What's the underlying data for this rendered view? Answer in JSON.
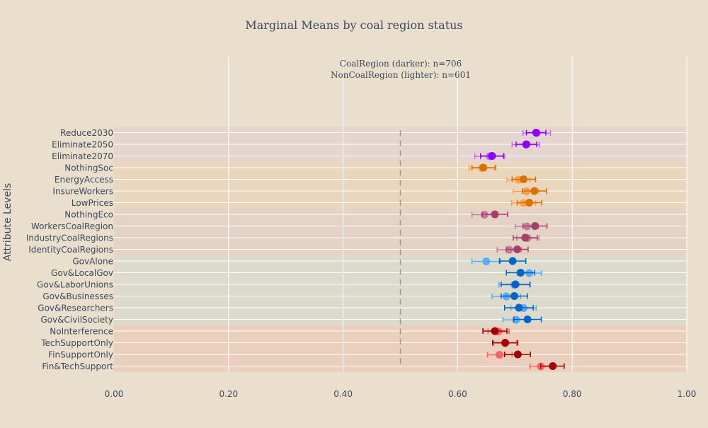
{
  "chart_data": {
    "type": "scatter",
    "title": "Marginal Means by coal region status",
    "annotation_lines": [
      "CoalRegion (darker): n=706",
      "NonCoalRegion (lighter): n=601"
    ],
    "ylabel": "Attribute Levels",
    "xlabel": "",
    "xlim": [
      0,
      1
    ],
    "x_ticks": [
      0,
      0.2,
      0.4,
      0.6,
      0.8,
      1.0
    ],
    "x_tick_labels": [
      "0.00",
      "0.20",
      "0.40",
      "0.60",
      "0.80",
      "1.00"
    ],
    "reference_line_x": 0.5,
    "grid": true,
    "series": [
      {
        "name": "CoalRegion (darker)",
        "shade": "darker"
      },
      {
        "name": "NonCoalRegion (lighter)",
        "shade": "lighter"
      }
    ],
    "groups": [
      {
        "band_color": "#e6d5cf",
        "dark_color": "#8b00ff",
        "light_color": "#b86bff",
        "levels": [
          "Reduce2030",
          "Eliminate2050",
          "Eliminate2070"
        ]
      },
      {
        "band_color": "#ead5bd",
        "dark_color": "#d97100",
        "light_color": "#ffa04d",
        "levels": [
          "NothingSoc",
          "EnergyAccess",
          "InsureWorkers",
          "LowPrices"
        ]
      },
      {
        "band_color": "#e4d3c4",
        "dark_color": "#a4406b",
        "light_color": "#c47b9a",
        "levels": [
          "NothingEco",
          "WorkersCoalRegion",
          "IndustryCoalRegions",
          "IdentityCoalRegions"
        ]
      },
      {
        "band_color": "#dcd9cd",
        "dark_color": "#0065c7",
        "light_color": "#5aaaf5",
        "levels": [
          "GovAlone",
          "Gov&LocalGov",
          "Gov&LaborUnions",
          "Gov&Businesses",
          "Gov&Researchers",
          "Gov&CivilSociety"
        ]
      },
      {
        "band_color": "#ebcfbd",
        "dark_color": "#a30000",
        "light_color": "#ff6363",
        "levels": [
          "NoInterference",
          "TechSupportOnly",
          "FinSupportOnly",
          "Fin&TechSupport"
        ]
      }
    ],
    "points": [
      {
        "level": "Reduce2030",
        "dark": [
          0.737,
          0.72,
          0.754
        ],
        "light": [
          0.738,
          0.714,
          0.762
        ]
      },
      {
        "level": "Eliminate2050",
        "dark": [
          0.72,
          0.702,
          0.738
        ],
        "light": [
          0.719,
          0.695,
          0.743
        ]
      },
      {
        "level": "Eliminate2070",
        "dark": [
          0.66,
          0.64,
          0.68
        ],
        "light": [
          0.656,
          0.63,
          0.682
        ]
      },
      {
        "level": "NothingSoc",
        "dark": [
          0.645,
          0.625,
          0.666
        ],
        "light": [
          0.642,
          0.62,
          0.664
        ]
      },
      {
        "level": "EnergyAccess",
        "dark": [
          0.715,
          0.695,
          0.736
        ],
        "light": [
          0.706,
          0.686,
          0.726
        ]
      },
      {
        "level": "InsureWorkers",
        "dark": [
          0.734,
          0.713,
          0.755
        ],
        "light": [
          0.72,
          0.697,
          0.742
        ]
      },
      {
        "level": "LowPrices",
        "dark": [
          0.725,
          0.704,
          0.747
        ],
        "light": [
          0.715,
          0.694,
          0.736
        ]
      },
      {
        "level": "NothingEco",
        "dark": [
          0.665,
          0.643,
          0.687
        ],
        "light": [
          0.647,
          0.625,
          0.669
        ]
      },
      {
        "level": "WorkersCoalRegion",
        "dark": [
          0.735,
          0.714,
          0.756
        ],
        "light": [
          0.721,
          0.701,
          0.741
        ]
      },
      {
        "level": "IndustryCoalRegions",
        "dark": [
          0.718,
          0.697,
          0.739
        ],
        "light": [
          0.722,
          0.703,
          0.742
        ]
      },
      {
        "level": "IdentityCoalRegions",
        "dark": [
          0.704,
          0.685,
          0.723
        ],
        "light": [
          0.69,
          0.669,
          0.711
        ]
      },
      {
        "level": "GovAlone",
        "dark": [
          0.696,
          0.673,
          0.719
        ],
        "light": [
          0.65,
          0.625,
          0.675
        ]
      },
      {
        "level": "Gov&LocalGov",
        "dark": [
          0.71,
          0.685,
          0.734
        ],
        "light": [
          0.725,
          0.704,
          0.746
        ]
      },
      {
        "level": "Gov&LaborUnions",
        "dark": [
          0.701,
          0.676,
          0.726
        ],
        "light": [
          0.699,
          0.672,
          0.727
        ]
      },
      {
        "level": "Gov&Businesses",
        "dark": [
          0.699,
          0.676,
          0.722
        ],
        "light": [
          0.685,
          0.66,
          0.71
        ]
      },
      {
        "level": "Gov&Researchers",
        "dark": [
          0.707,
          0.682,
          0.732
        ],
        "light": [
          0.715,
          0.693,
          0.737
        ]
      },
      {
        "level": "Gov&CivilSociety",
        "dark": [
          0.722,
          0.698,
          0.746
        ],
        "light": [
          0.702,
          0.679,
          0.725
        ]
      },
      {
        "level": "NoInterference",
        "dark": [
          0.665,
          0.644,
          0.686
        ],
        "light": [
          0.671,
          0.653,
          0.69
        ]
      },
      {
        "level": "TechSupportOnly",
        "dark": [
          0.683,
          0.661,
          0.705
        ],
        "light": [
          0.683,
          0.663,
          0.703
        ]
      },
      {
        "level": "FinSupportOnly",
        "dark": [
          0.705,
          0.682,
          0.727
        ],
        "light": [
          0.673,
          0.652,
          0.695
        ]
      },
      {
        "level": "Fin&TechSupport",
        "dark": [
          0.766,
          0.745,
          0.786
        ],
        "light": [
          0.745,
          0.726,
          0.764
        ]
      }
    ]
  }
}
